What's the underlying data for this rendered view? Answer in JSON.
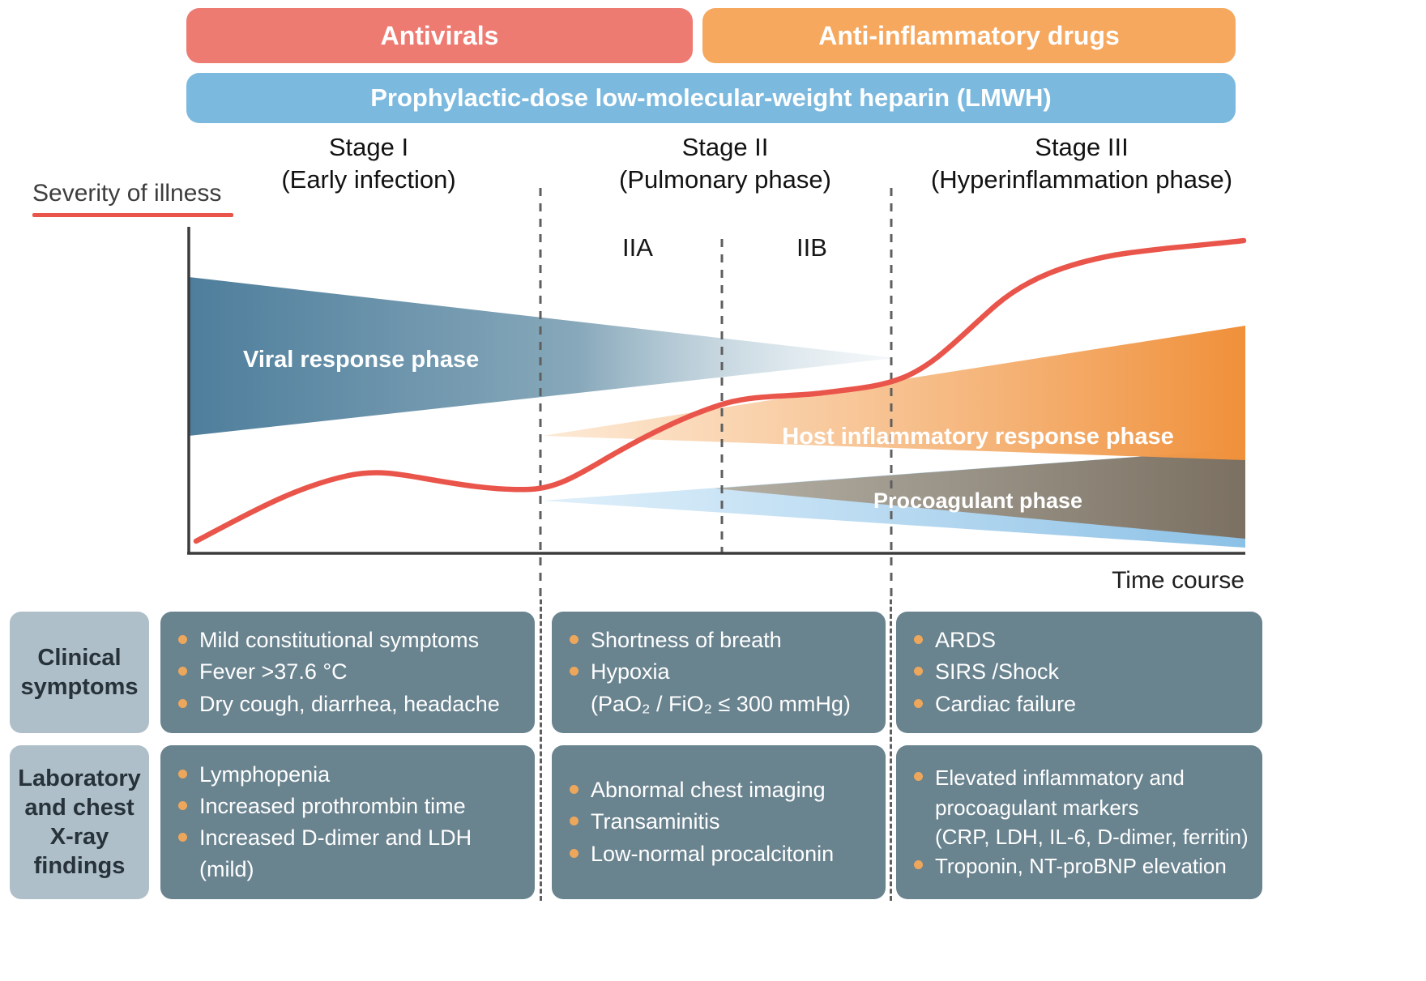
{
  "treatment_bars": {
    "antivirals": "Antivirals",
    "anti_inflammatory": "Anti-inflammatory drugs",
    "heparin": "Prophylactic-dose low-molecular-weight heparin (LMWH)"
  },
  "stages": [
    {
      "title": "Stage I",
      "subtitle": "(Early infection)"
    },
    {
      "title": "Stage II",
      "subtitle": "(Pulmonary phase)"
    },
    {
      "title": "Stage III",
      "subtitle": "(Hyperinflammation phase)"
    }
  ],
  "substages": {
    "iia": "IIA",
    "iib": "IIB"
  },
  "chart": {
    "y_axis_label": "Severity of illness",
    "x_axis_label": "Time course",
    "phases": {
      "viral": "Viral response phase",
      "host_inflammatory": "Host inflammatory response phase",
      "procoagulant": "Procoagulant phase"
    }
  },
  "findings_table": {
    "rows": [
      {
        "label": "Clinical symptoms",
        "cells": [
          {
            "bullets": [
              "Mild constitutional symptoms",
              "Fever >37.6 °C",
              "Dry cough, diarrhea, headache"
            ]
          },
          {
            "bullets": [
              "Shortness of breath",
              "Hypoxia\n(PaO₂ / FiO₂ ≤ 300 mmHg)"
            ]
          },
          {
            "bullets": [
              "ARDS",
              "SIRS /Shock",
              "Cardiac failure"
            ]
          }
        ]
      },
      {
        "label": "Laboratory and chest X-ray findings",
        "cells": [
          {
            "bullets": [
              "Lymphopenia",
              "Increased prothrombin time",
              "Increased D-dimer and LDH (mild)"
            ]
          },
          {
            "bullets": [
              "Abnormal chest imaging",
              "Transaminitis",
              "Low-normal procalcitonin"
            ]
          },
          {
            "bullets": [
              "Elevated inflammatory and\nprocoagulant markers\n(CRP, LDH, IL-6, D-dimer, ferritin)",
              "Troponin, NT-proBNP elevation"
            ]
          }
        ]
      }
    ]
  },
  "colors": {
    "antivirals_bar": "#ee7b72",
    "anti_inflammatory_bar": "#f6a85f",
    "heparin_bar": "#7cb9df",
    "severity_curve": "#e9554a",
    "viral_wedge": "#4e7e9c",
    "host_wedge": "#f0903a",
    "procoagulant_wedge": "#8cc1e6",
    "overlap_wedge": "#7b7061",
    "panel_cell": "#69838f",
    "panel_label": "#aebfc9",
    "bullet_dot": "#eda75c"
  }
}
